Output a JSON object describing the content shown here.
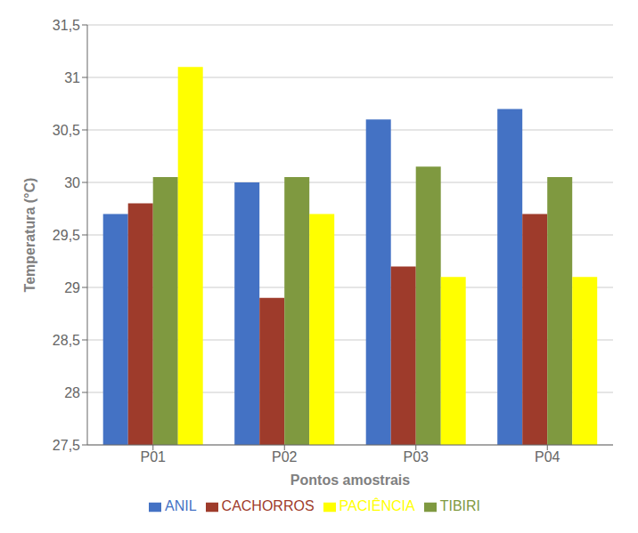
{
  "chart_data": {
    "type": "bar",
    "xlabel": "Pontos amostrais",
    "ylabel": "Temperatura (°C)",
    "categories": [
      "P01",
      "P02",
      "P03",
      "P04"
    ],
    "series": [
      {
        "name": "ANIL",
        "color": "#4472C4",
        "values": [
          29.7,
          30.0,
          30.6,
          30.7
        ]
      },
      {
        "name": "CACHORROS",
        "color": "#9E3B2B",
        "values": [
          29.8,
          28.9,
          29.2,
          29.7
        ]
      },
      {
        "name": "TIBIRI",
        "color": "#7F9940",
        "values": [
          30.05,
          30.05,
          30.15,
          30.05
        ]
      },
      {
        "name": "PACIÊNCIA",
        "color": "#FFFF00",
        "values": [
          31.1,
          29.7,
          29.1,
          29.1
        ]
      }
    ],
    "ylim": [
      27.5,
      31.5
    ],
    "yticks": [
      {
        "value": 27.5,
        "label": "27,5"
      },
      28,
      {
        "value": 28.5,
        "label": "28,5"
      },
      29,
      {
        "value": 29.5,
        "label": "29,5"
      },
      30,
      {
        "value": 30.5,
        "label": "30,5"
      },
      31,
      {
        "value": 31.5,
        "label": "31,5"
      }
    ],
    "grid": true,
    "legend": "bottom"
  }
}
